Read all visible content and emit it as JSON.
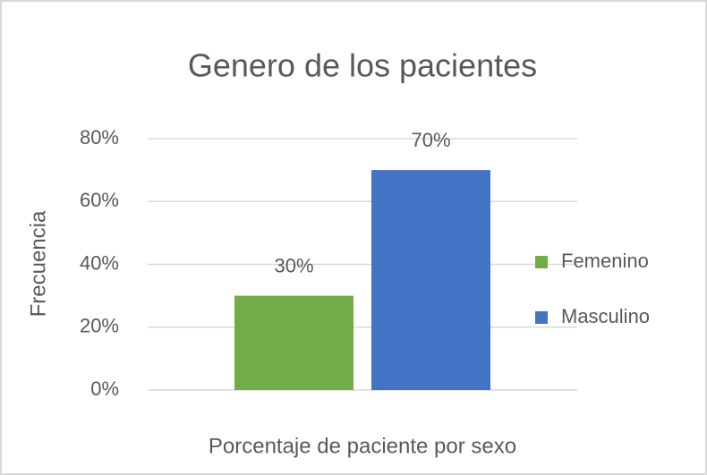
{
  "chart_data": {
    "type": "bar",
    "title": "Genero de los pacientes",
    "x_label": "Porcentaje de paciente por sexo",
    "y_label": "Frecuencia",
    "categories": [
      null
    ],
    "series": [
      {
        "name": "Femenino",
        "color": "#70ad47",
        "values": [
          30
        ],
        "value_labels": [
          "30%"
        ]
      },
      {
        "name": "Masculino",
        "color": "#4472c4",
        "values": [
          70
        ],
        "value_labels": [
          "70%"
        ]
      }
    ],
    "ylim": [
      0,
      80
    ],
    "yticks": [
      {
        "value": 0,
        "label": "0%"
      },
      {
        "value": 20,
        "label": "20%"
      },
      {
        "value": 40,
        "label": "40%"
      },
      {
        "value": 60,
        "label": "60%"
      },
      {
        "value": 80,
        "label": "80%"
      }
    ],
    "grid": true,
    "legend": "right"
  }
}
